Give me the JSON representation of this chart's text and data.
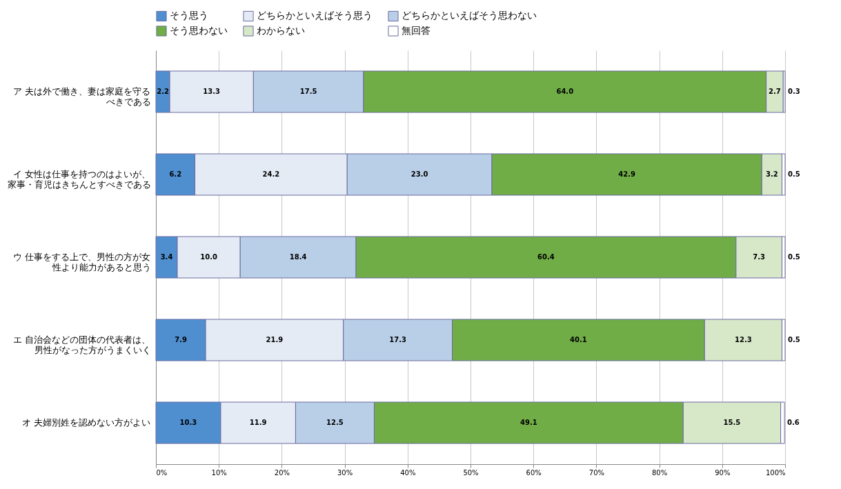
{
  "chart_data": {
    "type": "bar",
    "orientation": "horizontal",
    "stacked": true,
    "categories": [
      "ア 夫は外で働き、妻は家庭を守るべきである",
      "イ 女性は仕事を持つのはよいが、家事・育児はきちんとすべきである",
      "ウ 仕事をする上で、男性の方が女性より能力があると思う",
      "エ 自治会などの団体の代表者は、男性がなった方がうまくいく",
      "オ 夫婦別姓を認めない方がよい"
    ],
    "series": [
      {
        "name": "そう思う",
        "color": "#4f8fd0",
        "values": [
          2.2,
          6.2,
          3.4,
          7.9,
          10.3
        ],
        "value_labels": [
          "2.2",
          "6.2",
          "3.4",
          "7.9",
          "10.3"
        ]
      },
      {
        "name": "どちらかといえばそう思う",
        "color": "#e4ebf5",
        "values": [
          13.3,
          24.2,
          10.0,
          21.9,
          11.9
        ],
        "value_labels": [
          "13.3",
          "24.2",
          "10.0",
          "21.9",
          "11.9"
        ]
      },
      {
        "name": "どちらかといえばそう思わない",
        "color": "#b9cfe8",
        "values": [
          17.5,
          23.0,
          18.4,
          17.3,
          12.5
        ],
        "value_labels": [
          "17.5",
          "23.0",
          "18.4",
          "17.3",
          "12.5"
        ]
      },
      {
        "name": "そう思わない",
        "color": "#70ad47",
        "values": [
          64.0,
          42.9,
          60.4,
          40.1,
          49.1
        ],
        "value_labels": [
          "64.0",
          "42.9",
          "60.4",
          "40.1",
          "49.1"
        ]
      },
      {
        "name": "わからない",
        "color": "#d7e8c9",
        "values": [
          2.7,
          3.2,
          7.3,
          12.3,
          15.5
        ],
        "value_labels": [
          "2.7",
          "3.2",
          "7.3",
          "12.3",
          "15.5"
        ]
      },
      {
        "name": "無回答",
        "color": "#ffffff",
        "values": [
          0.3,
          0.5,
          0.5,
          0.5,
          0.6
        ],
        "value_labels": [
          "0.3",
          "0.5",
          "0.5",
          "0.5",
          "0.6"
        ]
      }
    ],
    "xlim": [
      0,
      100
    ],
    "xticks": [
      {
        "value": 0,
        "label": "0%"
      },
      {
        "value": 10,
        "label": "10%"
      },
      {
        "value": 20,
        "label": "20%"
      },
      {
        "value": 30,
        "label": "30%"
      },
      {
        "value": 40,
        "label": "40%"
      },
      {
        "value": 50,
        "label": "50%"
      },
      {
        "value": 60,
        "label": "60%"
      },
      {
        "value": 70,
        "label": "70%"
      },
      {
        "value": 80,
        "label": "80%"
      },
      {
        "value": 90,
        "label": "90%"
      },
      {
        "value": 100,
        "label": "100%"
      }
    ],
    "grid": "x",
    "legend": "top"
  }
}
